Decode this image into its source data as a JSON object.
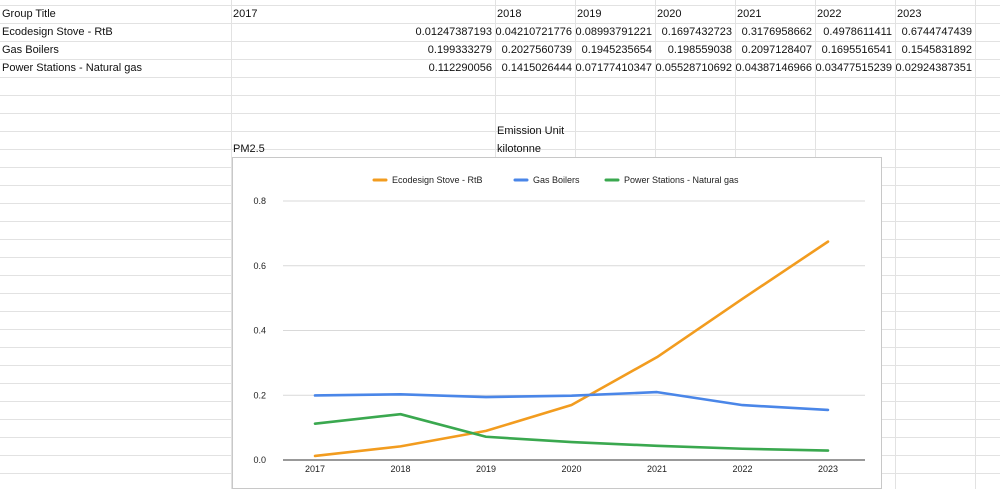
{
  "table": {
    "header": [
      "Group Title",
      "2017",
      "2018",
      "2019",
      "2020",
      "2021",
      "2022",
      "2023"
    ],
    "rows": [
      [
        "Ecodesign Stove - RtB",
        "0.01247387193",
        "0.04210721776",
        "0.08993791221",
        "0.1697432723",
        "0.3176958662",
        "0.4978611411",
        "0.6744747439"
      ],
      [
        "Gas Boilers",
        "0.199333279",
        "0.2027560739",
        "0.1945235654",
        "0.198559038",
        "0.2097128407",
        "0.1695516541",
        "0.1545831892"
      ],
      [
        "Power Stations - Natural gas",
        "0.112290056",
        "0.1415026444",
        "0.07177410347",
        "0.05528710692",
        "0.04387146966",
        "0.03477515239",
        "0.02924387351"
      ]
    ]
  },
  "meta": {
    "emission_unit_label": "Emission Unit",
    "emission_unit_value": "kilotonne",
    "pollutant": "PM2.5"
  },
  "chart_data": {
    "type": "line",
    "title": "",
    "xlabel": "",
    "ylabel": "",
    "x": [
      "2017",
      "2018",
      "2019",
      "2020",
      "2021",
      "2022",
      "2023"
    ],
    "ylim": [
      0,
      0.8
    ],
    "yticks": [
      "0.0",
      "0.2",
      "0.4",
      "0.6",
      "0.8"
    ],
    "grid": true,
    "legend_position": "top",
    "series": [
      {
        "name": "Ecodesign Stove - RtB",
        "color": "#f29c1f",
        "values": [
          0.01247387193,
          0.04210721776,
          0.08993791221,
          0.1697432723,
          0.3176958662,
          0.4978611411,
          0.6744747439
        ]
      },
      {
        "name": "Gas Boilers",
        "color": "#4a86e8",
        "values": [
          0.199333279,
          0.2027560739,
          0.1945235654,
          0.198559038,
          0.2097128407,
          0.1695516541,
          0.1545831892
        ]
      },
      {
        "name": "Power Stations - Natural gas",
        "color": "#3aa84f",
        "values": [
          0.112290056,
          0.1415026444,
          0.07177410347,
          0.05528710692,
          0.04387146966,
          0.03477515239,
          0.02924387351
        ]
      }
    ]
  }
}
